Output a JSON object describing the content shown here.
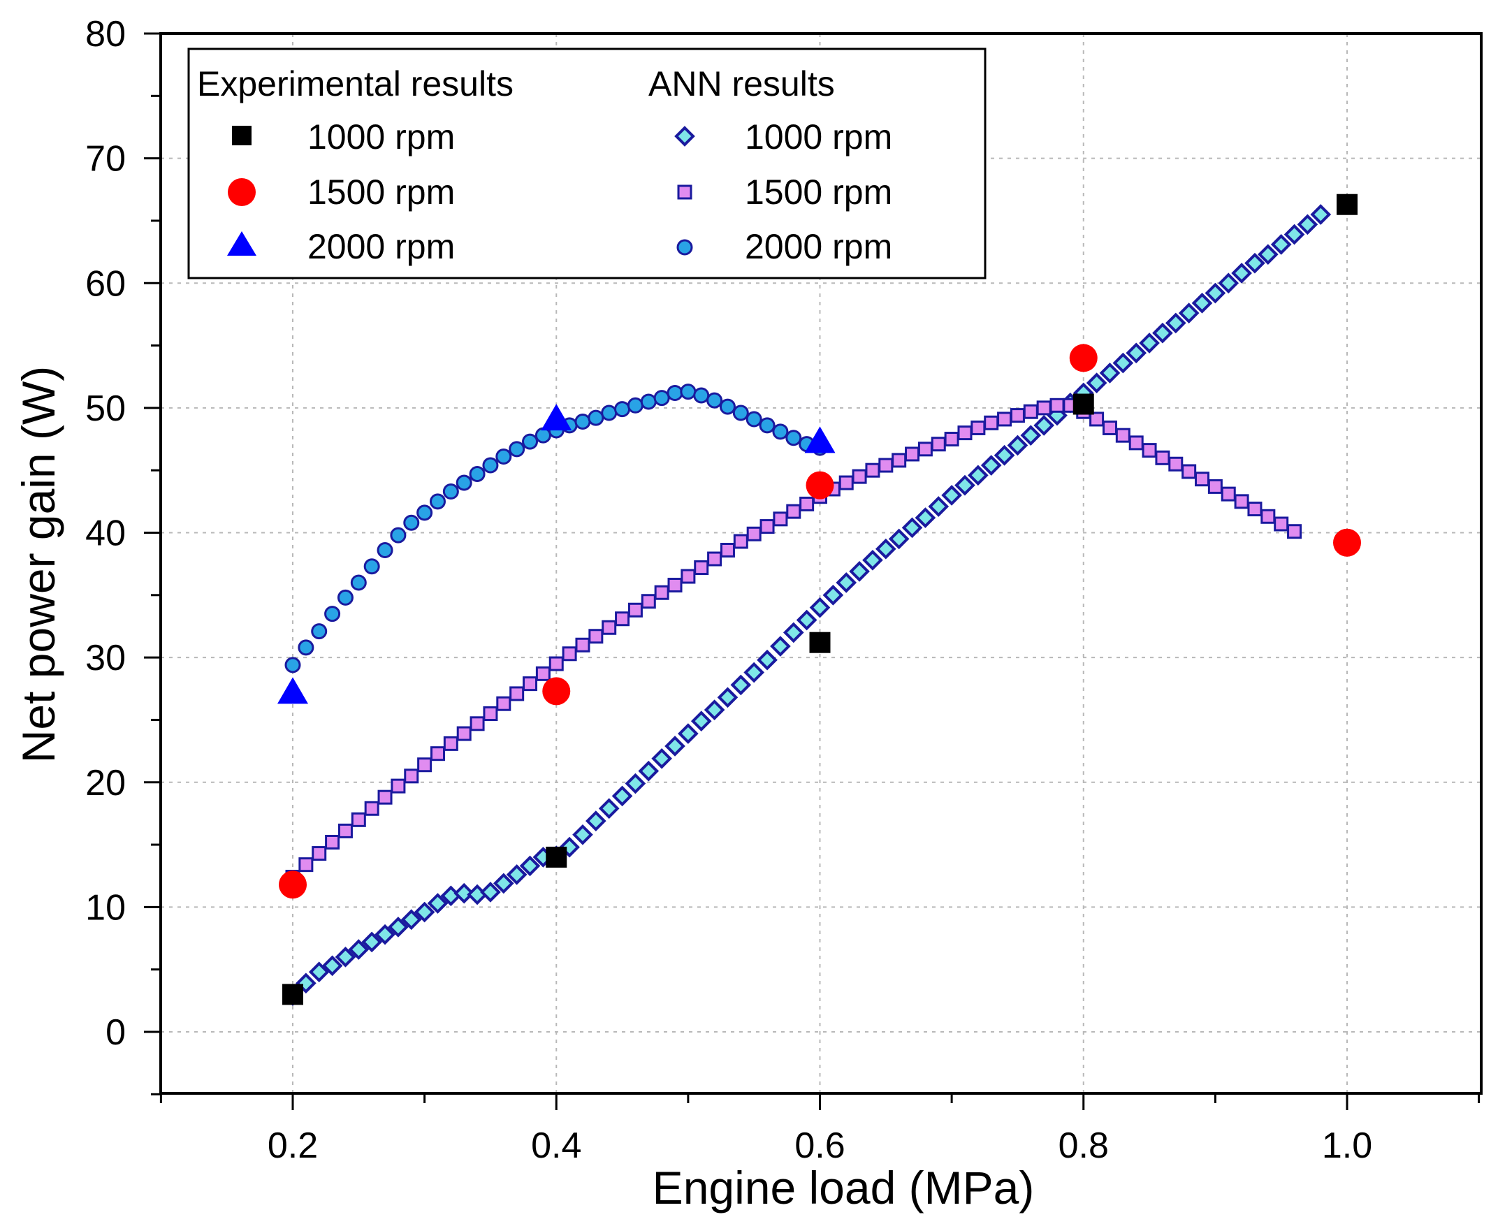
{
  "chart_data": {
    "type": "scatter",
    "xlabel": "Engine load (MPa)",
    "ylabel": "Net power gain (W)",
    "xlim": [
      0.1,
      1.1
    ],
    "ylim": [
      -5,
      80
    ],
    "xticks": [
      0.2,
      0.4,
      0.6,
      0.8,
      1.0
    ],
    "xtick_labels": [
      "0.2",
      "0.4",
      "0.6",
      "0.8",
      "1.0"
    ],
    "yticks": [
      0,
      10,
      20,
      30,
      40,
      50,
      60,
      70,
      80
    ],
    "ytick_labels": [
      "0",
      "10",
      "20",
      "30",
      "40",
      "50",
      "60",
      "70",
      "80"
    ],
    "grid": true,
    "legend": {
      "placement": "top-left",
      "groups": [
        {
          "title": "Experimental results",
          "entries": [
            "1000 rpm",
            "1500 rpm",
            "2000 rpm"
          ]
        },
        {
          "title": "ANN results",
          "entries": [
            "1000 rpm",
            "1500 rpm",
            "2000 rpm"
          ]
        }
      ]
    },
    "colors": {
      "exp_1000": "#000000",
      "exp_1500": "#ff0000",
      "exp_2000": "#0000ff",
      "ann_1000_fill": "#7fe6e8",
      "ann_1500_fill": "#e08cf0",
      "ann_2000_fill": "#29a3e6",
      "ann_stroke": "#1a1a9e"
    },
    "experimental": [
      {
        "name": "1000 rpm",
        "marker": "square",
        "x": [
          0.2,
          0.4,
          0.6,
          0.8,
          1.0
        ],
        "y": [
          3.0,
          14.0,
          31.2,
          50.3,
          66.3
        ]
      },
      {
        "name": "1500 rpm",
        "marker": "circle",
        "x": [
          0.2,
          0.4,
          0.6,
          0.8,
          1.0
        ],
        "y": [
          11.8,
          27.3,
          43.8,
          54.0,
          39.2
        ]
      },
      {
        "name": "2000 rpm",
        "marker": "triangle",
        "x": [
          0.2,
          0.4,
          0.6
        ],
        "y": [
          27.3,
          49.2,
          47.4
        ]
      }
    ],
    "ann": [
      {
        "name": "1000 rpm",
        "marker": "diamond",
        "x_start": 0.2,
        "x_step": 0.01,
        "y": [
          2.9,
          3.9,
          4.8,
          5.3,
          6.0,
          6.6,
          7.2,
          7.8,
          8.4,
          9.0,
          9.6,
          10.3,
          10.9,
          11.1,
          11.0,
          11.2,
          11.9,
          12.6,
          13.3,
          14.0,
          14.1,
          14.8,
          15.8,
          16.9,
          17.9,
          18.9,
          19.9,
          20.9,
          21.9,
          22.9,
          23.9,
          24.9,
          25.8,
          26.8,
          27.8,
          28.8,
          29.8,
          30.9,
          32.0,
          33.0,
          34.0,
          35.0,
          36.0,
          36.9,
          37.8,
          38.7,
          39.5,
          40.4,
          41.2,
          42.1,
          43.0,
          43.8,
          44.6,
          45.4,
          46.2,
          47.0,
          47.8,
          48.6,
          49.4,
          50.4,
          51.2,
          52.0,
          52.8,
          53.6,
          54.4,
          55.2,
          56.0,
          56.8,
          57.6,
          58.4,
          59.2,
          60.0,
          60.8,
          61.6,
          62.3,
          63.1,
          63.9,
          64.7,
          65.5
        ]
      },
      {
        "name": "1500 rpm",
        "marker": "square",
        "x_start": 0.2,
        "x_step": 0.01,
        "y": [
          12.4,
          13.4,
          14.3,
          15.2,
          16.1,
          17.0,
          17.9,
          18.8,
          19.7,
          20.5,
          21.4,
          22.3,
          23.1,
          23.9,
          24.7,
          25.5,
          26.3,
          27.1,
          27.9,
          28.7,
          29.5,
          30.3,
          31.0,
          31.7,
          32.4,
          33.1,
          33.8,
          34.5,
          35.2,
          35.8,
          36.5,
          37.2,
          37.9,
          38.6,
          39.3,
          39.9,
          40.5,
          41.1,
          41.7,
          42.3,
          42.9,
          43.5,
          44.0,
          44.5,
          45.0,
          45.4,
          45.8,
          46.3,
          46.7,
          47.1,
          47.5,
          48.0,
          48.4,
          48.8,
          49.1,
          49.4,
          49.7,
          50.0,
          50.2,
          50.2,
          49.7,
          49.1,
          48.4,
          47.8,
          47.2,
          46.6,
          46.0,
          45.5,
          44.9,
          44.3,
          43.7,
          43.1,
          42.5,
          41.9,
          41.3,
          40.7,
          40.1
        ]
      },
      {
        "name": "2000 rpm",
        "marker": "circle",
        "x_start": 0.2,
        "x_step": 0.01,
        "y": [
          29.4,
          30.8,
          32.1,
          33.5,
          34.8,
          36.0,
          37.3,
          38.6,
          39.8,
          40.8,
          41.6,
          42.5,
          43.3,
          44.0,
          44.7,
          45.4,
          46.1,
          46.7,
          47.3,
          47.8,
          48.2,
          48.6,
          48.9,
          49.2,
          49.6,
          49.9,
          50.2,
          50.5,
          50.8,
          51.2,
          51.3,
          51.0,
          50.6,
          50.1,
          49.6,
          49.1,
          48.6,
          48.1,
          47.6,
          47.1,
          46.8
        ]
      }
    ]
  }
}
